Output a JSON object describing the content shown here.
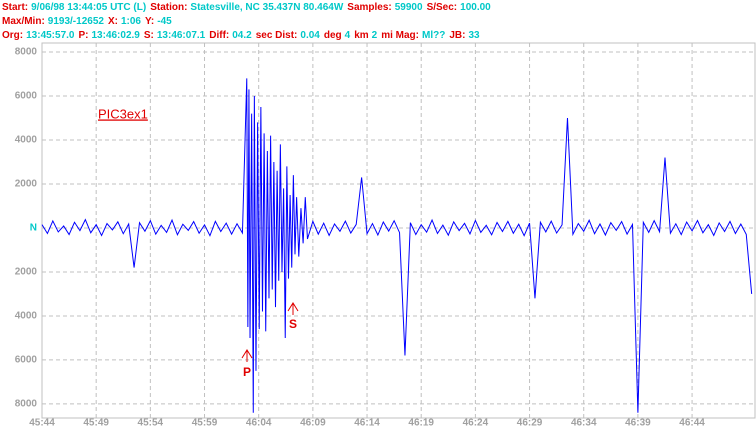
{
  "header": [
    [
      {
        "label": "Start:",
        "value": "9/06/98 13:44:05 UTC (L)"
      },
      {
        "label": "Station:",
        "value": "Statesville, NC 35.437N 80.464W"
      },
      {
        "label": "Samples:",
        "value": "59900"
      },
      {
        "label": "S/Sec:",
        "value": "100.00"
      }
    ],
    [
      {
        "label": "Max/Min:",
        "value": "9193/-12652"
      },
      {
        "label": "X:",
        "value": "1:06"
      },
      {
        "label": "Y:",
        "value": "-45"
      }
    ],
    [
      {
        "label": "Org:",
        "value": "13:45:57.0"
      },
      {
        "label": "P:",
        "value": "13:46:02.9"
      },
      {
        "label": "S:",
        "value": "13:46:07.1"
      },
      {
        "label": "Diff:",
        "value": "04.2"
      },
      {
        "label": "sec Dist:",
        "value": "0.04"
      },
      {
        "label": "deg",
        "value": "4"
      },
      {
        "label": "km",
        "value": "2"
      },
      {
        "label": "mi Mag:",
        "value": "Ml??"
      },
      {
        "label": "JB:",
        "value": "33"
      }
    ]
  ],
  "chart_data": {
    "type": "line",
    "annotations": [
      "PIC3ex1",
      "P",
      "S"
    ],
    "label_color": "#e00000",
    "value_color": "#00c8c8",
    "grid": true,
    "xlim": [
      2744,
      2809.9
    ],
    "xticks": [
      {
        "value": 2744,
        "label": "45:44"
      },
      {
        "value": 2749,
        "label": "45:49"
      },
      {
        "value": 2754,
        "label": "45:54"
      },
      {
        "value": 2759,
        "label": "45:59"
      },
      {
        "value": 2764,
        "label": "46:04"
      },
      {
        "value": 2769,
        "label": "46:09"
      },
      {
        "value": 2774,
        "label": "46:14"
      },
      {
        "value": 2779,
        "label": "46:19"
      },
      {
        "value": 2784,
        "label": "46:24"
      },
      {
        "value": 2789,
        "label": "46:29"
      },
      {
        "value": 2794,
        "label": "46:34"
      },
      {
        "value": 2799,
        "label": "46:39"
      },
      {
        "value": 2804,
        "label": "46:44"
      }
    ],
    "ylim": [
      -8640,
      8410
    ],
    "yticks": [
      8000,
      6000,
      4000,
      2000,
      {
        "value": 0,
        "label": "N"
      },
      {
        "value": -2000,
        "label": "2000"
      },
      {
        "value": -4000,
        "label": "4000"
      },
      {
        "value": -6000,
        "label": "6000"
      },
      {
        "value": -8000,
        "label": "8000"
      }
    ],
    "series": [
      {
        "color": "#0000ff",
        "x": [
          2744,
          2744.5,
          2745,
          2745.5,
          2746,
          2746.5,
          2747,
          2747.5,
          2748,
          2748.5,
          2749,
          2749.5,
          2750,
          2750.5,
          2751,
          2751.5,
          2752,
          2752.5,
          2753,
          2753.5,
          2754,
          2754.5,
          2755,
          2755.5,
          2756,
          2756.5,
          2757,
          2757.5,
          2758,
          2758.5,
          2759,
          2759.5,
          2760,
          2760.5,
          2761,
          2761.5,
          2762,
          2762.5,
          2762.9,
          2763.0,
          2763.1,
          2763.2,
          2763.35,
          2763.5,
          2763.6,
          2763.75,
          2763.9,
          2764.05,
          2764.2,
          2764.35,
          2764.5,
          2764.65,
          2764.8,
          2764.95,
          2765.1,
          2765.25,
          2765.4,
          2765.55,
          2765.7,
          2765.85,
          2766.0,
          2766.15,
          2766.3,
          2766.45,
          2766.6,
          2766.75,
          2766.9,
          2767.05,
          2767.2,
          2767.35,
          2767.5,
          2767.7,
          2767.9,
          2768.1,
          2768.3,
          2768.5,
          2769,
          2769.5,
          2770,
          2770.5,
          2771,
          2771.5,
          2772,
          2772.5,
          2773,
          2773.5,
          2774,
          2774.5,
          2775,
          2775.5,
          2776,
          2776.5,
          2777,
          2777.5,
          2778,
          2778.5,
          2779,
          2779.5,
          2780,
          2780.5,
          2781,
          2781.5,
          2782,
          2782.5,
          2783,
          2783.5,
          2784,
          2784.5,
          2785,
          2785.5,
          2786,
          2786.5,
          2787,
          2787.5,
          2788,
          2788.5,
          2789,
          2789.5,
          2790,
          2790.5,
          2791,
          2791.5,
          2792,
          2792.5,
          2793,
          2793.5,
          2794,
          2794.5,
          2795,
          2795.5,
          2796,
          2796.5,
          2797,
          2797.5,
          2798,
          2798.5,
          2799,
          2799.5,
          2800,
          2800.5,
          2801,
          2801.5,
          2802,
          2802.5,
          2803,
          2803.5,
          2804,
          2804.5,
          2805,
          2805.5,
          2806,
          2806.5,
          2807,
          2807.5,
          2808,
          2808.5,
          2809,
          2809.5
        ],
        "values": [
          150,
          -250,
          320,
          -180,
          90,
          -300,
          260,
          -120,
          380,
          -220,
          150,
          -340,
          200,
          -90,
          280,
          -260,
          180,
          -1800,
          240,
          -150,
          330,
          -280,
          120,
          -200,
          360,
          -310,
          170,
          -110,
          290,
          -240,
          140,
          -350,
          300,
          -160,
          220,
          -280,
          190,
          -230,
          6800,
          -4500,
          6300,
          -5000,
          5200,
          -8400,
          6000,
          -6500,
          4800,
          -4600,
          5500,
          -3800,
          4300,
          -4700,
          3500,
          -3200,
          4200,
          -2800,
          3000,
          -3600,
          2600,
          -2400,
          3800,
          -2000,
          1800,
          -5000,
          2800,
          -2300,
          1500,
          -1800,
          2400,
          -1200,
          1400,
          -1300,
          900,
          -700,
          1400,
          -500,
          300,
          -280,
          220,
          -340,
          180,
          -150,
          310,
          -230,
          160,
          2300,
          -260,
          200,
          -320,
          270,
          -140,
          330,
          -210,
          -5800,
          240,
          -300,
          150,
          -190,
          360,
          -250,
          130,
          -330,
          280,
          -120,
          210,
          -270,
          340,
          -200,
          120,
          -310,
          250,
          -160,
          300,
          -240,
          170,
          -350,
          220,
          -3200,
          260,
          -180,
          310,
          -230,
          140,
          5000,
          -290,
          200,
          -150,
          350,
          -260,
          180,
          -320,
          240,
          -110,
          290,
          -280,
          160,
          -8400,
          260,
          -200,
          330,
          -170,
          3200,
          -240,
          190,
          -300,
          270,
          -130,
          340,
          -220,
          150,
          -340,
          230,
          -160,
          300,
          -250,
          180,
          -290,
          -3000
        ]
      }
    ]
  }
}
